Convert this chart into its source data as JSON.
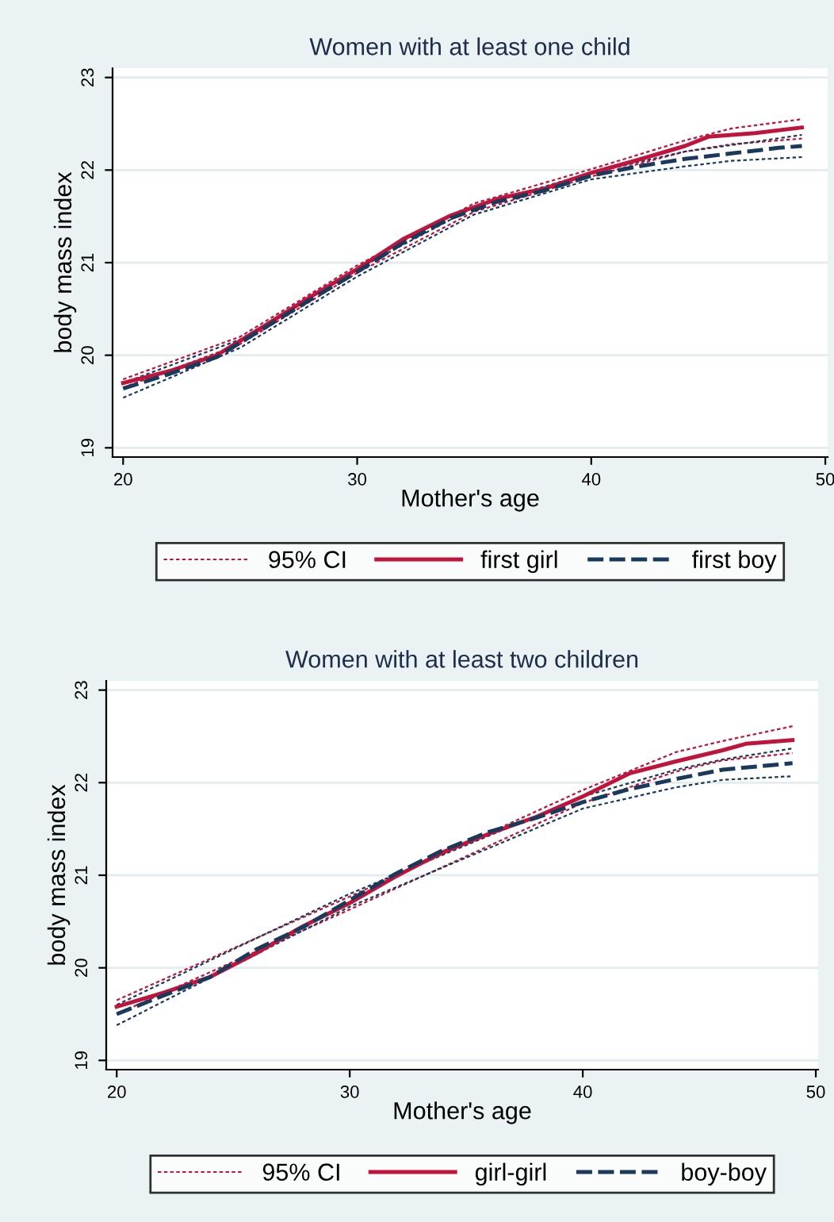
{
  "chart_data": [
    {
      "type": "line",
      "title": "Women with at least one child",
      "xlabel": "Mother's age",
      "ylabel": "body mass index",
      "xlim": [
        19.55,
        50.1
      ],
      "ylim": [
        18.9,
        23.1
      ],
      "xticks": [
        20,
        30,
        40,
        50
      ],
      "yticks": [
        19,
        20,
        21,
        22,
        23
      ],
      "grid": "y",
      "legend": "bottom",
      "series": [
        {
          "name": "95% CI",
          "color": "#c0143c",
          "line_style": "dotted",
          "x": [
            20,
            25,
            30,
            35,
            40,
            44,
            46,
            49
          ],
          "values": [
            19.74,
            20.2,
            20.97,
            21.64,
            22.01,
            22.32,
            22.45,
            22.55
          ]
        },
        {
          "color": "#c0143c",
          "line_style": "dotted",
          "x": [
            20,
            25,
            30,
            35,
            40,
            44,
            46,
            49
          ],
          "values": [
            19.65,
            20.12,
            20.89,
            21.55,
            21.93,
            22.2,
            22.28,
            22.34
          ]
        },
        {
          "color": "#1a3a5c",
          "line_style": "dotted",
          "x": [
            20,
            25,
            30,
            35,
            40,
            44,
            46,
            49
          ],
          "values": [
            19.7,
            20.17,
            20.93,
            21.6,
            21.97,
            22.2,
            22.27,
            22.38
          ]
        },
        {
          "color": "#1a3a5c",
          "line_style": "dotted",
          "x": [
            20,
            25,
            30,
            35,
            40,
            44,
            46,
            49
          ],
          "values": [
            19.54,
            20.08,
            20.85,
            21.52,
            21.9,
            22.04,
            22.1,
            22.14
          ]
        },
        {
          "name": "first girl",
          "color": "#c0143c",
          "line_style": "solid",
          "x": [
            20,
            22,
            24,
            26,
            28,
            30,
            32,
            34,
            36,
            38,
            40,
            42,
            44,
            45,
            47,
            49
          ],
          "values": [
            19.7,
            19.83,
            20.0,
            20.31,
            20.63,
            20.93,
            21.26,
            21.51,
            21.69,
            21.8,
            21.97,
            22.11,
            22.26,
            22.36,
            22.4,
            22.46
          ]
        },
        {
          "name": "first boy",
          "color": "#1a3a5c",
          "line_style": "dashed",
          "x": [
            20,
            22,
            24,
            26,
            28,
            30,
            32,
            34,
            36,
            38,
            40,
            42,
            44,
            46,
            48,
            49
          ],
          "values": [
            19.64,
            19.8,
            19.98,
            20.29,
            20.6,
            20.9,
            21.22,
            21.48,
            21.66,
            21.78,
            21.94,
            22.04,
            22.12,
            22.18,
            22.24,
            22.26
          ]
        }
      ]
    },
    {
      "type": "line",
      "title": "Women with at least two children",
      "xlabel": "Mother's age",
      "ylabel": "body mass index",
      "xlim": [
        19.55,
        50.1
      ],
      "ylim": [
        18.9,
        23.1
      ],
      "xticks": [
        20,
        30,
        40,
        50
      ],
      "yticks": [
        19,
        20,
        21,
        22,
        23
      ],
      "grid": "y",
      "legend": "bottom",
      "series": [
        {
          "name": "95% CI",
          "color": "#c0143c",
          "line_style": "dotted",
          "x": [
            20,
            30,
            40,
            44,
            46,
            49
          ],
          "values": [
            19.65,
            20.77,
            21.92,
            22.33,
            22.45,
            22.61
          ]
        },
        {
          "color": "#c0143c",
          "line_style": "dotted",
          "x": [
            20,
            30,
            40,
            44,
            46,
            49
          ],
          "values": [
            19.5,
            20.63,
            21.78,
            22.12,
            22.24,
            22.32
          ]
        },
        {
          "color": "#1a3a5c",
          "line_style": "dotted",
          "x": [
            20,
            30,
            40,
            44,
            46,
            49
          ],
          "values": [
            19.6,
            20.8,
            21.85,
            22.14,
            22.25,
            22.37
          ]
        },
        {
          "color": "#1a3a5c",
          "line_style": "dotted",
          "x": [
            20,
            30,
            40,
            44,
            46,
            49
          ],
          "values": [
            19.38,
            20.66,
            21.72,
            21.95,
            22.03,
            22.07
          ]
        },
        {
          "name": "girl-girl",
          "color": "#c0143c",
          "line_style": "solid",
          "x": [
            20,
            22,
            24,
            26,
            28,
            30,
            32,
            34,
            36,
            38,
            40,
            42,
            44,
            46,
            47,
            49
          ],
          "values": [
            19.58,
            19.73,
            19.9,
            20.16,
            20.45,
            20.7,
            20.99,
            21.25,
            21.45,
            21.63,
            21.85,
            22.1,
            22.23,
            22.35,
            22.42,
            22.46
          ]
        },
        {
          "name": "boy-boy",
          "color": "#1a3a5c",
          "line_style": "dashed",
          "x": [
            20,
            22,
            24,
            26,
            28,
            30,
            32,
            34,
            36,
            38,
            40,
            42,
            44,
            46,
            49
          ],
          "values": [
            19.5,
            19.7,
            19.9,
            20.2,
            20.44,
            20.73,
            21.02,
            21.27,
            21.47,
            21.62,
            21.79,
            21.93,
            22.04,
            22.14,
            22.21
          ]
        }
      ]
    }
  ]
}
